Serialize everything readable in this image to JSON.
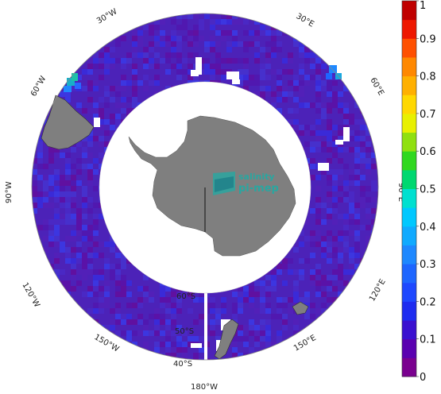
{
  "map": {
    "projection": "south-polar-stereographic",
    "longitude_labels": {
      "w30": "30°W",
      "e30": "30°E",
      "w60": "60°W",
      "e60": "60°E",
      "w90": "90°W",
      "e90": "90°E",
      "w120": "120°W",
      "e120": "120°E",
      "w150": "150°W",
      "e150": "150°E",
      "s180": "180°W"
    },
    "latitude_labels": {
      "lat60": "60°S",
      "lat50": "50°S",
      "lat40": "40°S"
    },
    "colors": {
      "land": "#7f7f7f",
      "ocean_base": "#5a1fa8",
      "ocean_mid": "#4a28c4",
      "frame": "#888888"
    }
  },
  "logo": {
    "line1": "salinity",
    "line2": "pi-mep",
    "color": "#2aa6a0"
  },
  "colorbar": {
    "ticks": [
      "0",
      "0.1",
      "0.2",
      "0.3",
      "0.4",
      "0.5",
      "0.6",
      "0.7",
      "0.8",
      "0.9",
      "1"
    ],
    "min": 0,
    "max": 1,
    "steps": 20,
    "palette": [
      "#7a008f",
      "#5a00b0",
      "#3a10d0",
      "#1e2cf0",
      "#1e48ff",
      "#1e66ff",
      "#1e88ff",
      "#10aaff",
      "#00c8ff",
      "#00e0d0",
      "#00d870",
      "#30d820",
      "#90e010",
      "#e8f000",
      "#ffd800",
      "#ffb000",
      "#ff8800",
      "#ff5000",
      "#ee1800",
      "#c00000"
    ]
  }
}
